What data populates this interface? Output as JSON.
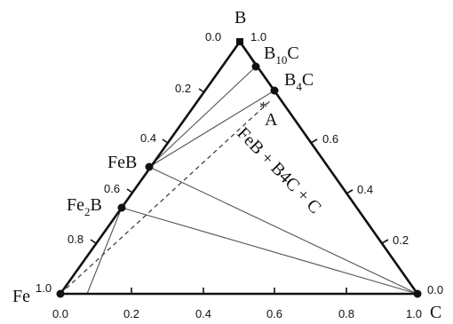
{
  "diagram": {
    "vertices": {
      "fe": "Fe",
      "b": "B",
      "c": "C"
    },
    "phases": {
      "b10c": {
        "main": "B",
        "sub": "10",
        "tail": "C"
      },
      "b4c": {
        "main": "B",
        "sub": "4",
        "tail": "C"
      },
      "feb": {
        "text": "FeB"
      },
      "fe2b": {
        "main": "Fe",
        "sub": "2",
        "tail": "B"
      },
      "point_a": {
        "star": "*",
        "letter": "A"
      }
    },
    "region_label": "FeB + B4C + C",
    "bottom_ticks": [
      "0.0",
      "0.2",
      "0.4",
      "0.6",
      "0.8",
      "1.0"
    ],
    "left_ticks": [
      "0.0",
      "0.2",
      "0.4",
      "0.6",
      "0.8",
      "1.0"
    ],
    "right_ticks": [
      "1.0",
      "0.6",
      "0.4",
      "0.2",
      "0.0"
    ]
  }
}
